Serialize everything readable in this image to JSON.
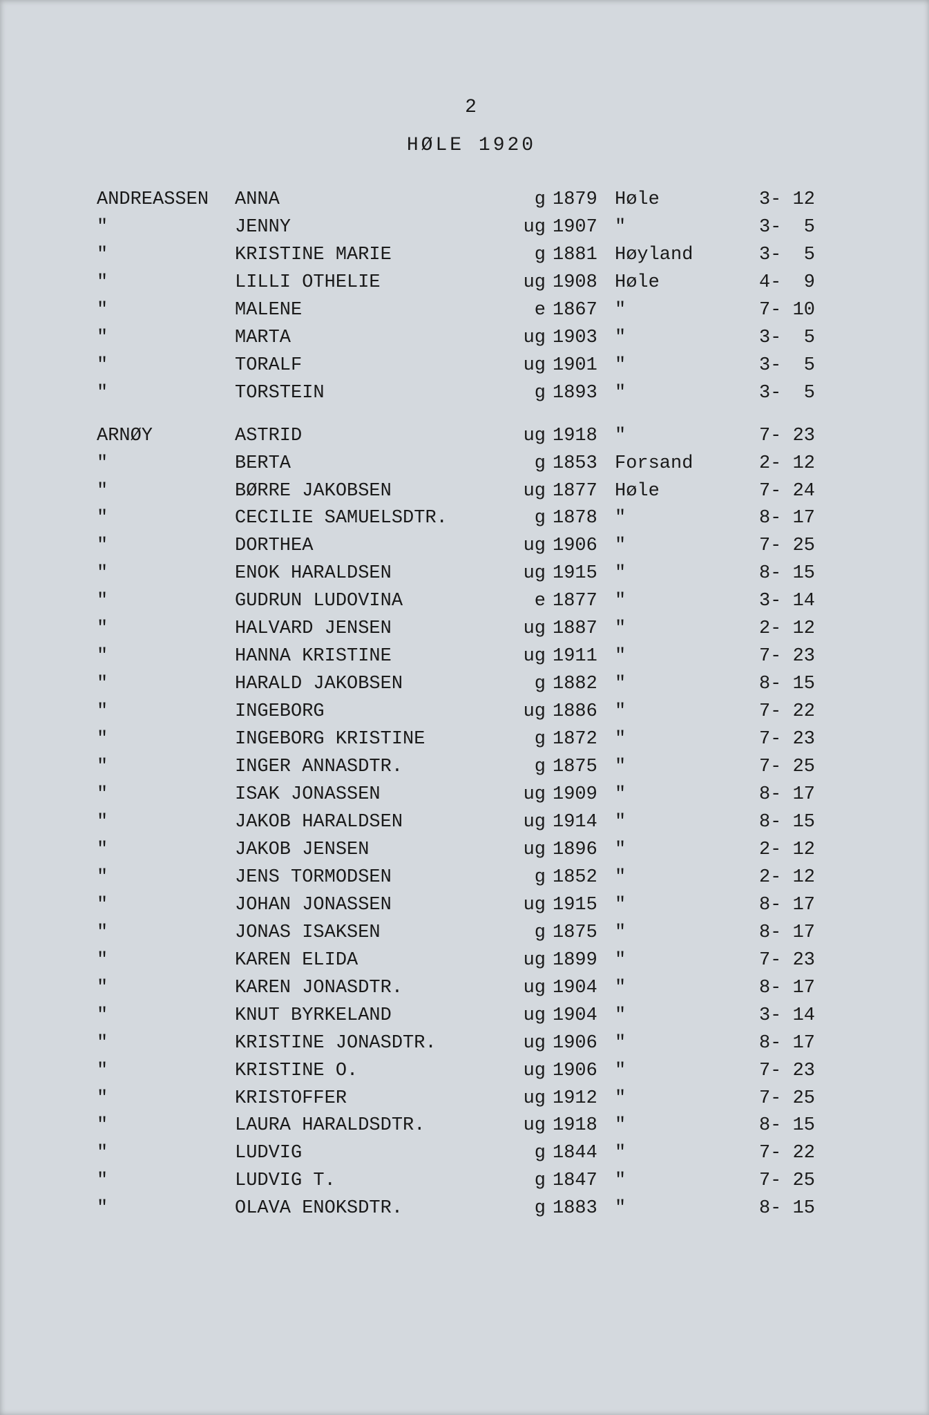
{
  "page_number": "2",
  "header": "HØLE  1920",
  "rows": [
    {
      "surname": "ANDREASSEN",
      "given": "ANNA",
      "status": "g",
      "year": "1879",
      "place": "Høle",
      "ref": "3- 12"
    },
    {
      "surname": "\"",
      "given": "JENNY",
      "status": "ug",
      "year": "1907",
      "place": "\"",
      "ref": "3-  5"
    },
    {
      "surname": "\"",
      "given": "KRISTINE MARIE",
      "status": "g",
      "year": "1881",
      "place": "Høyland",
      "ref": "3-  5"
    },
    {
      "surname": "\"",
      "given": "LILLI OTHELIE",
      "status": "ug",
      "year": "1908",
      "place": "Høle",
      "ref": "4-  9"
    },
    {
      "surname": "\"",
      "given": "MALENE",
      "status": "e",
      "year": "1867",
      "place": "\"",
      "ref": "7- 10"
    },
    {
      "surname": "\"",
      "given": "MARTA",
      "status": "ug",
      "year": "1903",
      "place": "\"",
      "ref": "3-  5"
    },
    {
      "surname": "\"",
      "given": "TORALF",
      "status": "ug",
      "year": "1901",
      "place": "\"",
      "ref": "3-  5"
    },
    {
      "surname": "\"",
      "given": "TORSTEIN",
      "status": "g",
      "year": "1893",
      "place": "\"",
      "ref": "3-  5"
    },
    {
      "gap": true
    },
    {
      "surname": "ARNØY",
      "given": "ASTRID",
      "status": "ug",
      "year": "1918",
      "place": "\"",
      "ref": "7- 23"
    },
    {
      "surname": "\"",
      "given": "BERTA",
      "status": "g",
      "year": "1853",
      "place": "Forsand",
      "ref": "2- 12"
    },
    {
      "surname": "\"",
      "given": "BØRRE JAKOBSEN",
      "status": "ug",
      "year": "1877",
      "place": "Høle",
      "ref": "7- 24"
    },
    {
      "surname": "\"",
      "given": "CECILIE SAMUELSDTR.",
      "status": "g",
      "year": "1878",
      "place": "\"",
      "ref": "8- 17"
    },
    {
      "surname": "\"",
      "given": "DORTHEA",
      "status": "ug",
      "year": "1906",
      "place": "\"",
      "ref": "7- 25"
    },
    {
      "surname": "\"",
      "given": "ENOK HARALDSEN",
      "status": "ug",
      "year": "1915",
      "place": "\"",
      "ref": "8- 15"
    },
    {
      "surname": "\"",
      "given": "GUDRUN LUDOVINA",
      "status": "e",
      "year": "1877",
      "place": "\"",
      "ref": "3- 14"
    },
    {
      "surname": "\"",
      "given": "HALVARD JENSEN",
      "status": "ug",
      "year": "1887",
      "place": "\"",
      "ref": "2- 12"
    },
    {
      "surname": "\"",
      "given": "HANNA KRISTINE",
      "status": "ug",
      "year": "1911",
      "place": "\"",
      "ref": "7- 23"
    },
    {
      "surname": "\"",
      "given": "HARALD JAKOBSEN",
      "status": "g",
      "year": "1882",
      "place": "\"",
      "ref": "8- 15"
    },
    {
      "surname": "\"",
      "given": "INGEBORG",
      "status": "ug",
      "year": "1886",
      "place": "\"",
      "ref": "7- 22"
    },
    {
      "surname": "\"",
      "given": "INGEBORG KRISTINE",
      "status": "g",
      "year": "1872",
      "place": "\"",
      "ref": "7- 23"
    },
    {
      "surname": "\"",
      "given": "INGER ANNASDTR.",
      "status": "g",
      "year": "1875",
      "place": "\"",
      "ref": "7- 25"
    },
    {
      "surname": "\"",
      "given": "ISAK JONASSEN",
      "status": "ug",
      "year": "1909",
      "place": "\"",
      "ref": "8- 17"
    },
    {
      "surname": "\"",
      "given": "JAKOB HARALDSEN",
      "status": "ug",
      "year": "1914",
      "place": "\"",
      "ref": "8- 15"
    },
    {
      "surname": "\"",
      "given": "JAKOB JENSEN",
      "status": "ug",
      "year": "1896",
      "place": "\"",
      "ref": "2- 12"
    },
    {
      "surname": "\"",
      "given": "JENS TORMODSEN",
      "status": "g",
      "year": "1852",
      "place": "\"",
      "ref": "2- 12"
    },
    {
      "surname": "\"",
      "given": "JOHAN JONASSEN",
      "status": "ug",
      "year": "1915",
      "place": "\"",
      "ref": "8- 17"
    },
    {
      "surname": "\"",
      "given": "JONAS ISAKSEN",
      "status": "g",
      "year": "1875",
      "place": "\"",
      "ref": "8- 17"
    },
    {
      "surname": "\"",
      "given": "KAREN ELIDA",
      "status": "ug",
      "year": "1899",
      "place": "\"",
      "ref": "7- 23"
    },
    {
      "surname": "\"",
      "given": "KAREN JONASDTR.",
      "status": "ug",
      "year": "1904",
      "place": "\"",
      "ref": "8- 17"
    },
    {
      "surname": "\"",
      "given": "KNUT BYRKELAND",
      "status": "ug",
      "year": "1904",
      "place": "\"",
      "ref": "3- 14"
    },
    {
      "surname": "\"",
      "given": "KRISTINE JONASDTR.",
      "status": "ug",
      "year": "1906",
      "place": "\"",
      "ref": "8- 17"
    },
    {
      "surname": "\"",
      "given": "KRISTINE O.",
      "status": "ug",
      "year": "1906",
      "place": "\"",
      "ref": "7- 23"
    },
    {
      "surname": "\"",
      "given": "KRISTOFFER",
      "status": "ug",
      "year": "1912",
      "place": "\"",
      "ref": "7- 25"
    },
    {
      "surname": "\"",
      "given": "LAURA HARALDSDTR.",
      "status": "ug",
      "year": "1918",
      "place": "\"",
      "ref": "8- 15"
    },
    {
      "surname": "\"",
      "given": "LUDVIG",
      "status": "g",
      "year": "1844",
      "place": "\"",
      "ref": "7- 22"
    },
    {
      "surname": "\"",
      "given": "LUDVIG T.",
      "status": "g",
      "year": "1847",
      "place": "\"",
      "ref": "7- 25"
    },
    {
      "surname": "\"",
      "given": "OLAVA ENOKSDTR.",
      "status": "g",
      "year": "1883",
      "place": "\"",
      "ref": "8- 15"
    }
  ],
  "colors": {
    "page_bg": "#d4d9de",
    "body_bg": "#b8bfc5",
    "text": "#1a1a1a"
  },
  "typography": {
    "font_family": "Courier New, Courier, monospace",
    "font_size_pt": 20,
    "line_height": 1.48
  }
}
